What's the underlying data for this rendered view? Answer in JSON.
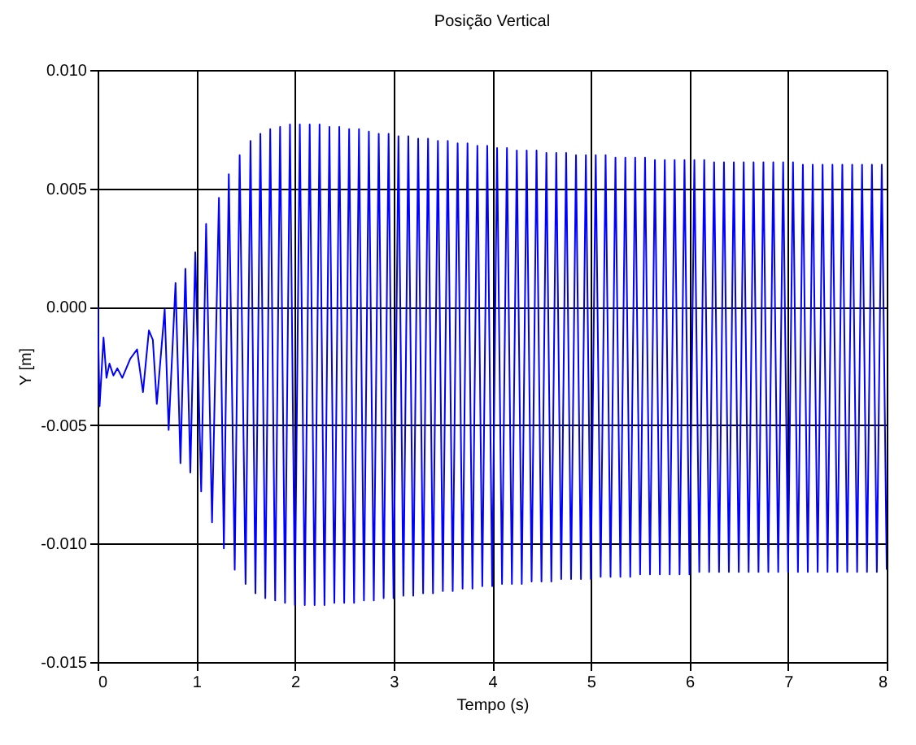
{
  "chart_data": {
    "type": "line",
    "title": "Posição Vertical",
    "xlabel": "Tempo (s)",
    "ylabel": "Y [m]",
    "xlim": [
      0,
      8
    ],
    "xticks": [
      0,
      1,
      2,
      3,
      4,
      5,
      6,
      7,
      8
    ],
    "ylim": [
      -0.015,
      0.01
    ],
    "yticks": [
      {
        "value": -0.015,
        "label": "-0.015"
      },
      {
        "value": -0.01,
        "label": "-0.010"
      },
      {
        "value": -0.005,
        "label": "-0.005"
      },
      {
        "value": 0,
        "label": "0.000"
      },
      {
        "value": 0.005,
        "label": "0.005"
      },
      {
        "value": 0.01,
        "label": "0.010"
      }
    ],
    "grid": true,
    "line_style": "solid",
    "series": [
      {
        "color": "#0000ff",
        "x": [
          0,
          0.02,
          0.06,
          0.09,
          0.12,
          0.16,
          0.2,
          0.25,
          0.33,
          0.4,
          0.46,
          0.52,
          0.56,
          0.6,
          0.68,
          0.72,
          0.79,
          0.84,
          0.89,
          0.94,
          0.99,
          1.05,
          1.1,
          1.16,
          1.23,
          1.28,
          1.33,
          1.39,
          1.44,
          1.5,
          1.55,
          1.6,
          1.65,
          1.7,
          1.75,
          1.8,
          1.85,
          1.9,
          1.95,
          2.0,
          2.05,
          2.1,
          2.15,
          2.2,
          2.25,
          2.3,
          2.35,
          2.4,
          2.45,
          2.5,
          2.55,
          2.6,
          2.65,
          2.7,
          2.75,
          2.8,
          2.85,
          2.9,
          2.95,
          3.0,
          3.05,
          3.1,
          3.15,
          3.2,
          3.25,
          3.3,
          3.35,
          3.4,
          3.45,
          3.5,
          3.55,
          3.6,
          3.65,
          3.7,
          3.75,
          3.8,
          3.85,
          3.9,
          3.95,
          4.0,
          4.05,
          4.1,
          4.15,
          4.2,
          4.25,
          4.3,
          4.35,
          4.4,
          4.45,
          4.5,
          4.55,
          4.6,
          4.65,
          4.7,
          4.75,
          4.8,
          4.85,
          4.9,
          4.95,
          5.0,
          5.05,
          5.1,
          5.15,
          5.2,
          5.25,
          5.3,
          5.35,
          5.4,
          5.45,
          5.5,
          5.55,
          5.6,
          5.65,
          5.7,
          5.75,
          5.8,
          5.85,
          5.9,
          5.95,
          6.0,
          6.05,
          6.1,
          6.15,
          6.2,
          6.25,
          6.3,
          6.35,
          6.4,
          6.45,
          6.5,
          6.55,
          6.6,
          6.65,
          6.7,
          6.75,
          6.8,
          6.85,
          6.9,
          6.95,
          7.0,
          7.05,
          7.1,
          7.15,
          7.2,
          7.25,
          7.3,
          7.35,
          7.4,
          7.45,
          7.5,
          7.55,
          7.6,
          7.65,
          7.7,
          7.75,
          7.8,
          7.85,
          7.9,
          7.95,
          8.0
        ],
        "values": [
          0.0,
          -0.0042,
          -0.0013,
          -0.003,
          -0.0024,
          -0.0029,
          -0.0026,
          -0.003,
          -0.0022,
          -0.0018,
          -0.0036,
          -0.001,
          -0.0014,
          -0.0041,
          -0.0001,
          -0.0052,
          0.001,
          -0.0066,
          0.0016,
          -0.007,
          0.0023,
          -0.0078,
          0.0035,
          -0.0091,
          0.0046,
          -0.0102,
          0.0056,
          -0.0111,
          0.0064,
          -0.0117,
          0.007,
          -0.0121,
          0.0073,
          -0.0123,
          0.0075,
          -0.0124,
          0.0076,
          -0.0125,
          0.0077,
          -0.0126,
          0.0077,
          -0.0126,
          0.0077,
          -0.0126,
          0.0077,
          -0.0126,
          0.0076,
          -0.0125,
          0.0076,
          -0.0125,
          0.0075,
          -0.0125,
          0.0075,
          -0.0124,
          0.0074,
          -0.0124,
          0.0073,
          -0.0123,
          0.0073,
          -0.0123,
          0.0072,
          -0.0122,
          0.0072,
          -0.0122,
          0.0071,
          -0.0121,
          0.0071,
          -0.0121,
          0.007,
          -0.012,
          0.007,
          -0.012,
          0.0069,
          -0.0119,
          0.0069,
          -0.0119,
          0.0068,
          -0.0118,
          0.0068,
          -0.0118,
          0.0067,
          -0.0117,
          0.0067,
          -0.0117,
          0.0066,
          -0.0117,
          0.0066,
          -0.0116,
          0.0066,
          -0.0116,
          0.0065,
          -0.0116,
          0.0065,
          -0.0115,
          0.0065,
          -0.0115,
          0.0064,
          -0.0115,
          0.0064,
          -0.0115,
          0.0064,
          -0.0114,
          0.0064,
          -0.0114,
          0.0063,
          -0.0114,
          0.0063,
          -0.0114,
          0.0063,
          -0.0113,
          0.0063,
          -0.0113,
          0.0062,
          -0.0113,
          0.0062,
          -0.0113,
          0.0062,
          -0.0113,
          0.0062,
          -0.0113,
          0.0062,
          -0.0112,
          0.0062,
          -0.0112,
          0.0061,
          -0.0112,
          0.0061,
          -0.0112,
          0.0061,
          -0.0112,
          0.0061,
          -0.0112,
          0.0061,
          -0.0112,
          0.0061,
          -0.0112,
          0.0061,
          -0.0112,
          0.0061,
          -0.0112,
          0.0061,
          -0.0112,
          0.006,
          -0.0112,
          0.006,
          -0.0112,
          0.006,
          -0.0112,
          0.006,
          -0.0112,
          0.006,
          -0.0112,
          0.006,
          -0.0112,
          0.006,
          -0.0112,
          0.006,
          -0.0112,
          0.006,
          -0.0111
        ]
      }
    ]
  }
}
